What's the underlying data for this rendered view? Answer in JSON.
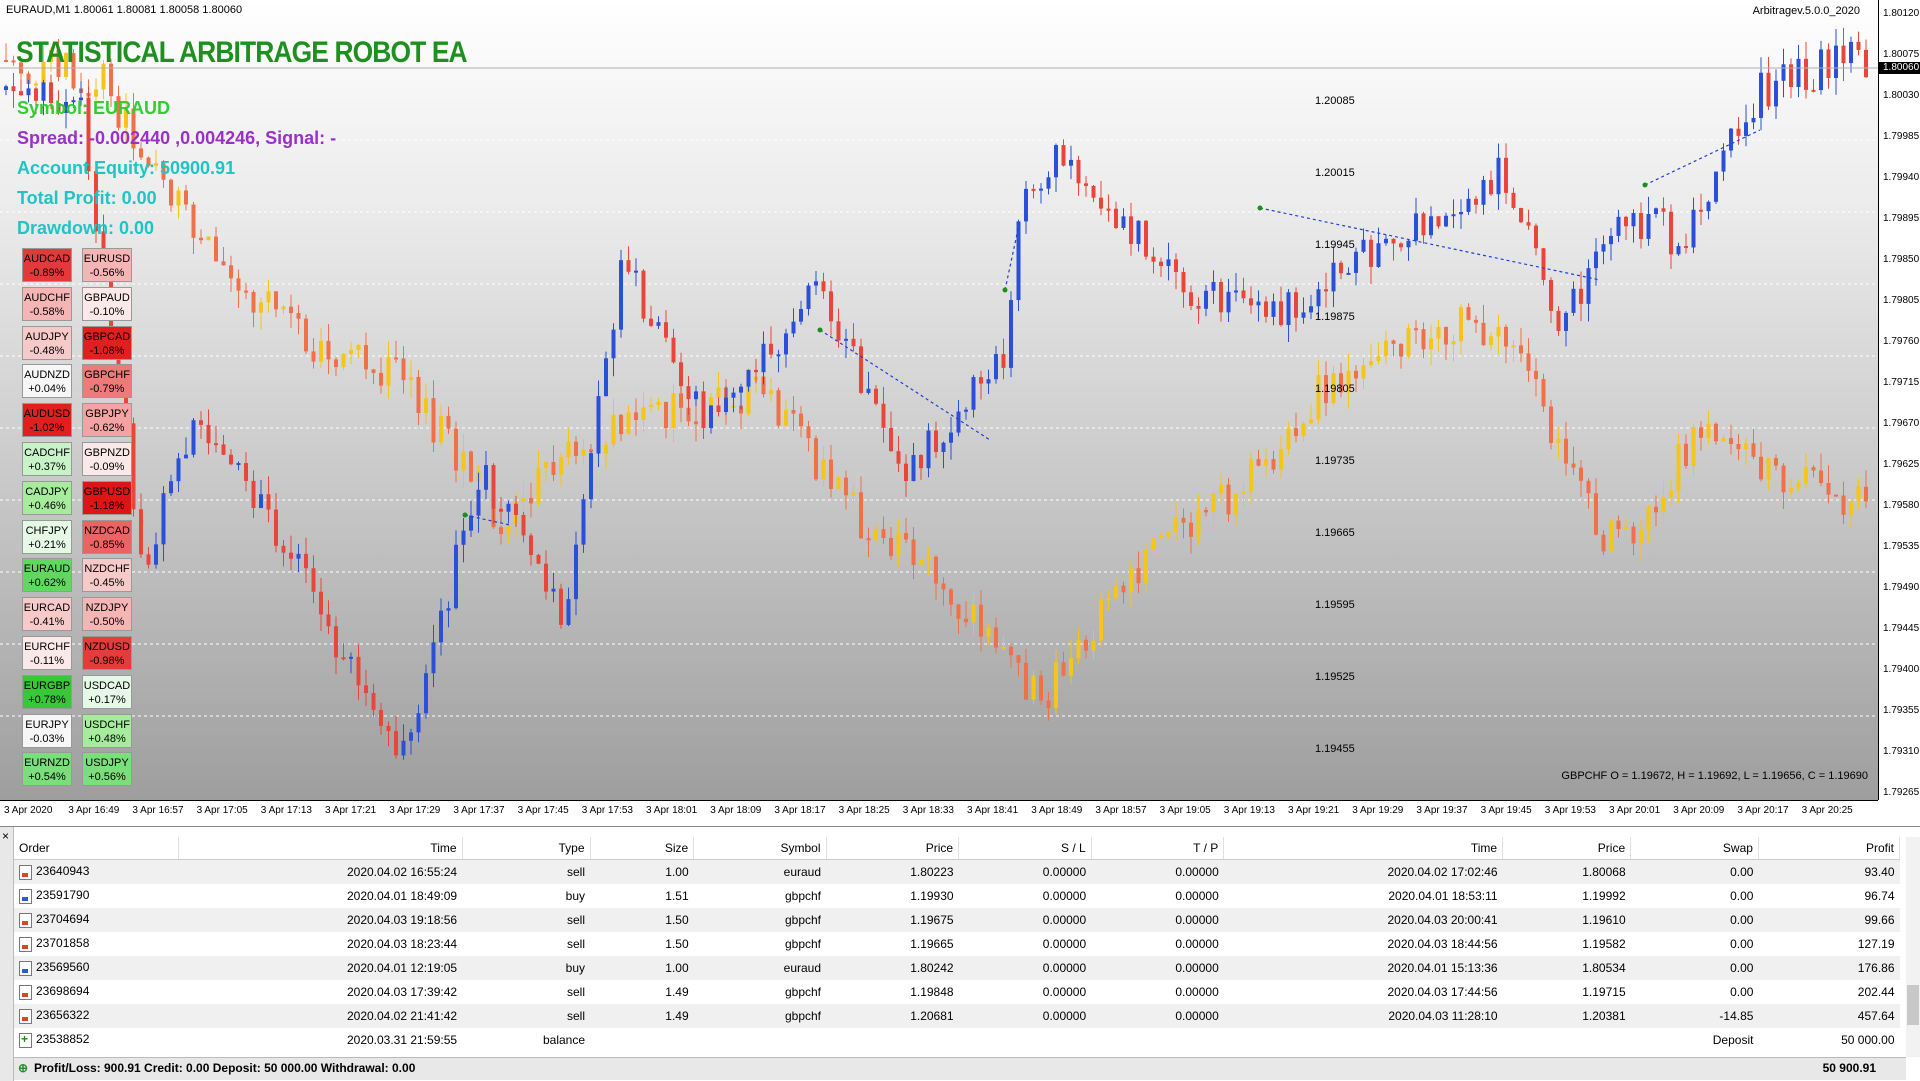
{
  "chart": {
    "header": "EURAUD,M1  1.80061 1.80081 1.80058 1.80060",
    "version": "Arbitragev.5.0.0_2020",
    "current_price": "1.80060",
    "ohlc": "GBPCHF O = 1.19672, H = 1.19692, L = 1.19656, C = 1.19690",
    "price_labels": [
      "1.80120",
      "1.80075",
      "1.80030",
      "1.79985",
      "1.79940",
      "1.79895",
      "1.79850",
      "1.79805",
      "1.79760",
      "1.79715",
      "1.79670",
      "1.79625",
      "1.79580",
      "1.79535",
      "1.79490",
      "1.79445",
      "1.79400",
      "1.79355",
      "1.79310",
      "1.79265"
    ],
    "mid_labels": [
      "1.20085",
      "1.20015",
      "1.19945",
      "1.19875",
      "1.19805",
      "1.19735",
      "1.19665",
      "1.19595",
      "1.19525",
      "1.19455"
    ],
    "time_labels": [
      "3 Apr 2020",
      "3 Apr 16:49",
      "3 Apr 16:57",
      "3 Apr 17:05",
      "3 Apr 17:13",
      "3 Apr 17:21",
      "3 Apr 17:29",
      "3 Apr 17:37",
      "3 Apr 17:45",
      "3 Apr 17:53",
      "3 Apr 18:01",
      "3 Apr 18:09",
      "3 Apr 18:17",
      "3 Apr 18:25",
      "3 Apr 18:33",
      "3 Apr 18:41",
      "3 Apr 18:49",
      "3 Apr 18:57",
      "3 Apr 19:05",
      "3 Apr 19:13",
      "3 Apr 19:21",
      "3 Apr 19:29",
      "3 Apr 19:37",
      "3 Apr 19:45",
      "3 Apr 19:53",
      "3 Apr 20:01",
      "3 Apr 20:09",
      "3 Apr 20:17",
      "3 Apr 20:25"
    ]
  },
  "ea": {
    "title": "STATISTICAL ARBITRAGE ROBOT EA",
    "symbol": "Symbol: EURAUD",
    "spread": "Spread: -0.002440 ,0.004246, Signal: -",
    "equity": "Account Equity: 50900.91",
    "profit": "Total Profit: 0.00",
    "drawdown": "Drawdown: 0.00",
    "colors": {
      "title": "#1f8f1f",
      "symbol": "#33cc33",
      "spread": "#9b30c8",
      "equity": "#20c4c4"
    }
  },
  "pairs_left": [
    {
      "name": "AUDCAD",
      "value": "-0.89%",
      "bg": "#e23a3a",
      "fg": "#000"
    },
    {
      "name": "AUDCHF",
      "value": "-0.58%",
      "bg": "#f5b5b5",
      "fg": "#000"
    },
    {
      "name": "AUDJPY",
      "value": "-0.48%",
      "bg": "#f7caca",
      "fg": "#000"
    },
    {
      "name": "AUDNZD",
      "value": "+0.04%",
      "bg": "#f6f6f6",
      "fg": "#000"
    },
    {
      "name": "AUDUSD",
      "value": "-1.02%",
      "bg": "#e01f1f",
      "fg": "#000"
    },
    {
      "name": "CADCHF",
      "value": "+0.37%",
      "bg": "#c8f3c8",
      "fg": "#000"
    },
    {
      "name": "CADJPY",
      "value": "+0.46%",
      "bg": "#a6ec9c",
      "fg": "#000"
    },
    {
      "name": "CHFJPY",
      "value": "+0.21%",
      "bg": "#e6f9e6",
      "fg": "#000"
    },
    {
      "name": "EURAUD",
      "value": "+0.62%",
      "bg": "#5fd85f",
      "fg": "#000"
    },
    {
      "name": "EURCAD",
      "value": "-0.41%",
      "bg": "#f7caca",
      "fg": "#000"
    },
    {
      "name": "EURCHF",
      "value": "-0.11%",
      "bg": "#fbe9e9",
      "fg": "#000"
    },
    {
      "name": "EURGBP",
      "value": "+0.78%",
      "bg": "#37c737",
      "fg": "#000"
    },
    {
      "name": "EURJPY",
      "value": "-0.03%",
      "bg": "#f6f6f6",
      "fg": "#000"
    },
    {
      "name": "EURNZD",
      "value": "+0.54%",
      "bg": "#7ade7a",
      "fg": "#000"
    }
  ],
  "pairs_right": [
    {
      "name": "EURUSD",
      "value": "-0.56%",
      "bg": "#f5b5b5",
      "fg": "#000"
    },
    {
      "name": "GBPAUD",
      "value": "-0.10%",
      "bg": "#fbe9e9",
      "fg": "#000"
    },
    {
      "name": "GBPCAD",
      "value": "-1.08%",
      "bg": "#e01f1f",
      "fg": "#000"
    },
    {
      "name": "GBPCHF",
      "value": "-0.79%",
      "bg": "#ee7a7a",
      "fg": "#000"
    },
    {
      "name": "GBPJPY",
      "value": "-0.62%",
      "bg": "#f3a3a3",
      "fg": "#000"
    },
    {
      "name": "GBPNZD",
      "value": "-0.09%",
      "bg": "#fbe9e9",
      "fg": "#000"
    },
    {
      "name": "GBPUSD",
      "value": "-1.18%",
      "bg": "#dd1515",
      "fg": "#000"
    },
    {
      "name": "NZDCAD",
      "value": "-0.85%",
      "bg": "#ea6464",
      "fg": "#000"
    },
    {
      "name": "NZDCHF",
      "value": "-0.45%",
      "bg": "#f7caca",
      "fg": "#000"
    },
    {
      "name": "NZDJPY",
      "value": "-0.50%",
      "bg": "#f5b5b5",
      "fg": "#000"
    },
    {
      "name": "NZDUSD",
      "value": "-0.98%",
      "bg": "#e43b3b",
      "fg": "#000"
    },
    {
      "name": "USDCAD",
      "value": "+0.17%",
      "bg": "#e6f9e6",
      "fg": "#000"
    },
    {
      "name": "USDCHF",
      "value": "+0.48%",
      "bg": "#a6ec9c",
      "fg": "#000"
    },
    {
      "name": "USDJPY",
      "value": "+0.56%",
      "bg": "#7ade7a",
      "fg": "#000"
    }
  ],
  "terminal": {
    "headers": [
      "Order",
      "Time",
      "Type",
      "Size",
      "Symbol",
      "Price",
      "S / L",
      "T / P",
      "Time",
      "Price",
      "Swap",
      "Profit"
    ],
    "rows": [
      {
        "icon": "sell",
        "order": "23640943",
        "time": "2020.04.02 16:55:24",
        "type": "sell",
        "size": "1.00",
        "symbol": "euraud",
        "price": "1.80223",
        "sl": "0.00000",
        "tp": "0.00000",
        "time2": "2020.04.02 17:02:46",
        "price2": "1.80068",
        "swap": "0.00",
        "profit": "93.40"
      },
      {
        "icon": "buy",
        "order": "23591790",
        "time": "2020.04.01 18:49:09",
        "type": "buy",
        "size": "1.51",
        "symbol": "gbpchf",
        "price": "1.19930",
        "sl": "0.00000",
        "tp": "0.00000",
        "time2": "2020.04.01 18:53:11",
        "price2": "1.19992",
        "swap": "0.00",
        "profit": "96.74"
      },
      {
        "icon": "sell",
        "order": "23704694",
        "time": "2020.04.03 19:18:56",
        "type": "sell",
        "size": "1.50",
        "symbol": "gbpchf",
        "price": "1.19675",
        "sl": "0.00000",
        "tp": "0.00000",
        "time2": "2020.04.03 20:00:41",
        "price2": "1.19610",
        "swap": "0.00",
        "profit": "99.66"
      },
      {
        "icon": "sell",
        "order": "23701858",
        "time": "2020.04.03 18:23:44",
        "type": "sell",
        "size": "1.50",
        "symbol": "gbpchf",
        "price": "1.19665",
        "sl": "0.00000",
        "tp": "0.00000",
        "time2": "2020.04.03 18:44:56",
        "price2": "1.19582",
        "swap": "0.00",
        "profit": "127.19"
      },
      {
        "icon": "buy",
        "order": "23569560",
        "time": "2020.04.01 12:19:05",
        "type": "buy",
        "size": "1.00",
        "symbol": "euraud",
        "price": "1.80242",
        "sl": "0.00000",
        "tp": "0.00000",
        "time2": "2020.04.01 15:13:36",
        "price2": "1.80534",
        "swap": "0.00",
        "profit": "176.86"
      },
      {
        "icon": "sell",
        "order": "23698694",
        "time": "2020.04.03 17:39:42",
        "type": "sell",
        "size": "1.49",
        "symbol": "gbpchf",
        "price": "1.19848",
        "sl": "0.00000",
        "tp": "0.00000",
        "time2": "2020.04.03 17:44:56",
        "price2": "1.19715",
        "swap": "0.00",
        "profit": "202.44"
      },
      {
        "icon": "sell",
        "order": "23656322",
        "time": "2020.04.02 21:41:42",
        "type": "sell",
        "size": "1.49",
        "symbol": "gbpchf",
        "price": "1.20681",
        "sl": "0.00000",
        "tp": "0.00000",
        "time2": "2020.04.03 11:28:10",
        "price2": "1.20381",
        "swap": "-14.85",
        "profit": "457.64"
      },
      {
        "icon": "bal",
        "order": "23538852",
        "time": "2020.03.31 21:59:55",
        "type": "balance",
        "size": "",
        "symbol": "",
        "price": "",
        "sl": "",
        "tp": "",
        "time2": "",
        "price2": "",
        "swap": "Deposit",
        "profit": "50 000.00"
      }
    ],
    "status_left": "Profit/Loss: 900.91  Credit: 0.00  Deposit: 50 000.00  Withdrawal: 0.00",
    "status_right": "50 900.91"
  }
}
